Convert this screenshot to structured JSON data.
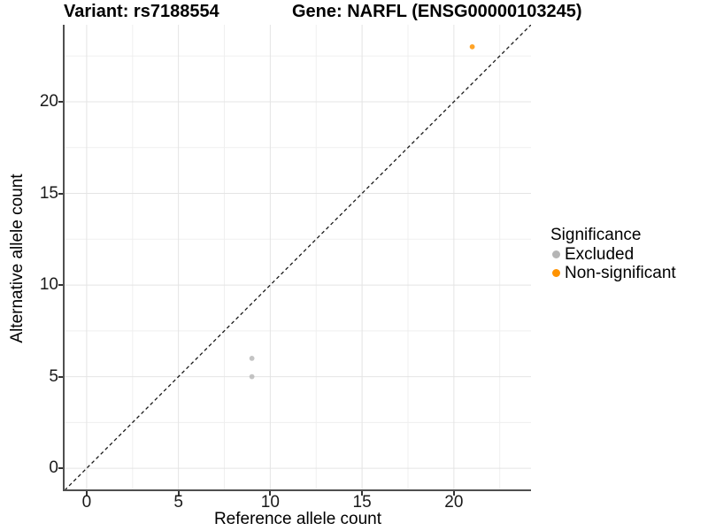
{
  "header": {
    "variant_title": "Variant: rs7188554",
    "gene_title": "Gene: NARFL (ENSG00000103245)"
  },
  "axes": {
    "x_label": "Reference allele count",
    "y_label": "Alternative allele count"
  },
  "legend": {
    "title": "Significance",
    "position": "right",
    "items": [
      {
        "label": "Excluded",
        "color": "#B5B5B5"
      },
      {
        "label": "Non-significant",
        "color": "#FF9300"
      }
    ]
  },
  "chart_data": {
    "type": "scatter",
    "title": "Variant: rs7188554 — Gene: NARFL (ENSG00000103245)",
    "xlabel": "Reference allele count",
    "ylabel": "Alternative allele count",
    "xlim": [
      -1.2,
      24.2
    ],
    "ylim": [
      -1.2,
      24.2
    ],
    "x_ticks": [
      0,
      5,
      10,
      15,
      20
    ],
    "y_ticks": [
      0,
      5,
      10,
      15,
      20
    ],
    "x_minor_ticks": [
      2.5,
      7.5,
      12.5,
      17.5,
      22.5
    ],
    "y_minor_ticks": [
      2.5,
      7.5,
      12.5,
      17.5,
      22.5
    ],
    "grid": "major+minor",
    "grid_major_color": "#e4e4e4",
    "grid_minor_color": "#efefef",
    "reference_line": {
      "type": "identity",
      "style": "dashed",
      "color": "#1a1a1a"
    },
    "legend_position": "right",
    "series": [
      {
        "name": "Excluded",
        "color": "#B5B5B5",
        "point_opacity": 0.8,
        "points": [
          [
            9,
            5
          ],
          [
            9,
            6
          ]
        ]
      },
      {
        "name": "Non-significant",
        "color": "#FF9300",
        "point_opacity": 0.85,
        "points": [
          [
            21,
            23
          ]
        ]
      }
    ]
  }
}
